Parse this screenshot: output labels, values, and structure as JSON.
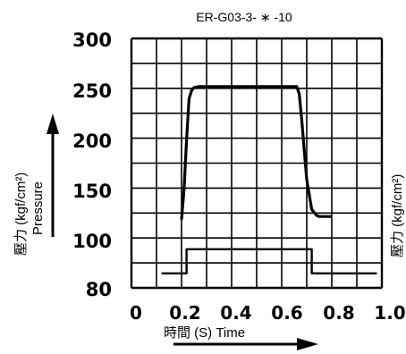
{
  "chart_data": {
    "type": "line",
    "title": "ER-G03-3- ∗ -10",
    "ylabel_jp": "壓力 (kgf/cm²)",
    "ylabel_en": "Pressure",
    "right_label": "壓力 (kgf/cm²)",
    "xlabel": "時間 (S) Time",
    "xlim": [
      0,
      1.0
    ],
    "ylim": [
      80,
      300
    ],
    "x_ticks": [
      "0",
      "0.2",
      "0.4",
      "0.6",
      "0.8",
      "1.0"
    ],
    "y_ticks": [
      "300",
      "250",
      "200",
      "150",
      "100",
      "80"
    ],
    "grid": true,
    "series": [
      {
        "style": "thick",
        "x": [
          0.2,
          0.21,
          0.22,
          0.23,
          0.24,
          0.25,
          0.27,
          0.3,
          0.4,
          0.5,
          0.6,
          0.66,
          0.67,
          0.68,
          0.69,
          0.7,
          0.72,
          0.74,
          0.75,
          0.8
        ],
        "y": [
          120,
          150,
          200,
          240,
          248,
          251,
          252,
          252,
          252,
          252,
          252,
          252,
          245,
          220,
          190,
          160,
          130,
          124,
          123,
          123
        ]
      },
      {
        "style": "thin",
        "x": [
          0.12,
          0.22,
          0.22,
          0.72,
          0.72,
          0.98
        ],
        "y": [
          86,
          86,
          96,
          96,
          86,
          86
        ]
      }
    ]
  },
  "colors": {
    "line": "#000000",
    "grid": "#000000",
    "background": "#ffffff"
  }
}
